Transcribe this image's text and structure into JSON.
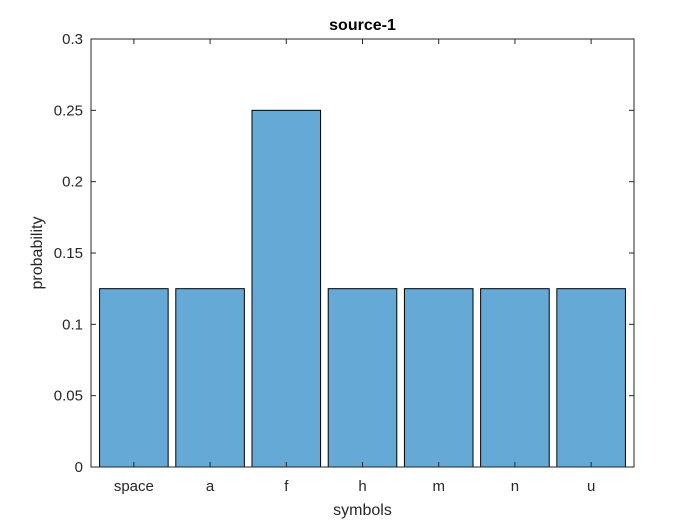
{
  "chart_data": {
    "type": "bar",
    "title": "source-1",
    "xlabel": "symbols",
    "ylabel": "probability",
    "categories": [
      "space",
      "a",
      "f",
      "h",
      "m",
      "n",
      "u"
    ],
    "values": [
      0.125,
      0.125,
      0.25,
      0.125,
      0.125,
      0.125,
      0.125
    ],
    "ylim": [
      0,
      0.3
    ],
    "yticks": [
      0,
      0.05,
      0.1,
      0.15,
      0.2,
      0.25,
      0.3
    ],
    "ytick_labels": [
      "0",
      "0.05",
      "0.1",
      "0.15",
      "0.2",
      "0.25",
      "0.3"
    ],
    "grid": false,
    "legend": "none",
    "colors": {
      "bar_fill": "#65a9d7",
      "bar_edge": "#000000",
      "axis": "#262626"
    }
  }
}
